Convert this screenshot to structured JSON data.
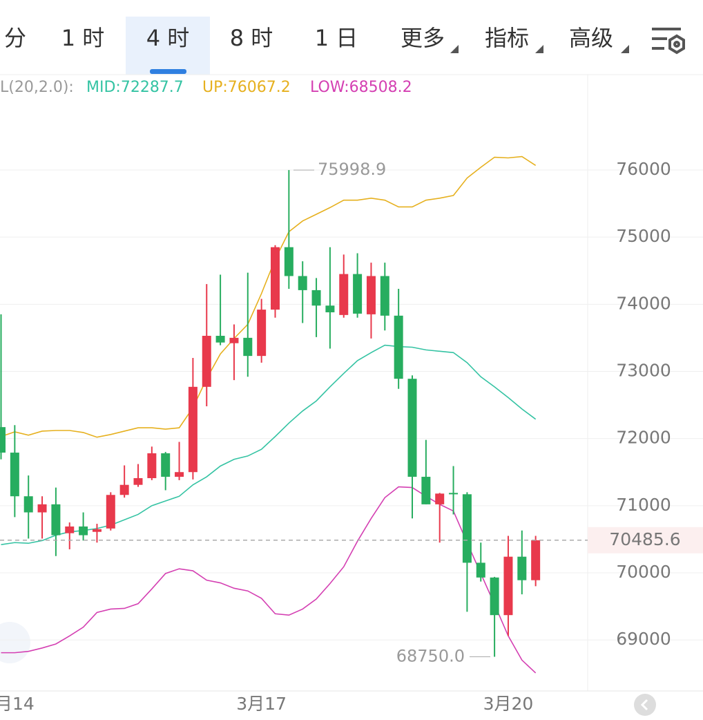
{
  "tabs": [
    "分",
    "1 时",
    "4 时",
    "8 时",
    "1 日",
    "更多",
    "指标",
    "高级"
  ],
  "chart_data": {
    "type": "candlestick",
    "indicator": "L(20,2.0):",
    "x": [
      null,
      "月14",
      null,
      null,
      null,
      null,
      null,
      null,
      null,
      null,
      null,
      null,
      null,
      null,
      null,
      null,
      null,
      null,
      null,
      "3月17",
      null,
      null,
      null,
      null,
      null,
      null,
      null,
      null,
      null,
      null,
      null,
      null,
      null,
      null,
      null,
      null,
      null,
      "3月20",
      null,
      null
    ],
    "open": [
      72170,
      71790,
      71140,
      70900,
      71020,
      70590,
      70690,
      70610,
      70660,
      71160,
      71310,
      71410,
      71780,
      71430,
      71500,
      72770,
      73530,
      73420,
      73500,
      73230,
      73920,
      74850,
      74420,
      74210,
      73980,
      73840,
      74450,
      73850,
      74420,
      73830,
      72890,
      71430,
      71020,
      71190,
      71170,
      70150,
      69930,
      69370,
      70240,
      69890
    ],
    "high": [
      73850,
      72200,
      71450,
      71140,
      71270,
      70750,
      70900,
      70730,
      71200,
      71600,
      71620,
      71880,
      71800,
      71950,
      73200,
      74300,
      74440,
      73700,
      74470,
      74080,
      74880,
      75998.9,
      74640,
      74390,
      74850,
      74740,
      74760,
      74620,
      74620,
      74230,
      72940,
      71980,
      71190,
      71590,
      71200,
      70450,
      69940,
      70550,
      70630,
      70550
    ],
    "low": [
      71690,
      70830,
      70510,
      70510,
      70250,
      70350,
      70480,
      70450,
      70630,
      71120,
      71280,
      71380,
      71230,
      71380,
      71390,
      72480,
      73390,
      72870,
      72920,
      73130,
      73800,
      74230,
      73720,
      73510,
      73340,
      73800,
      73800,
      73490,
      73610,
      72740,
      70810,
      71020,
      70450,
      70870,
      69420,
      69870,
      68750,
      69060,
      69680,
      69800
    ],
    "close": [
      71790,
      71140,
      70900,
      71020,
      70560,
      70690,
      70560,
      70650,
      71160,
      71310,
      71410,
      71780,
      71430,
      71500,
      72770,
      73530,
      73430,
      73500,
      73230,
      73920,
      74850,
      74420,
      74210,
      73980,
      73880,
      74450,
      73860,
      74420,
      73830,
      72890,
      71430,
      71020,
      71180,
      71170,
      70150,
      69930,
      69370,
      70240,
      69890,
      70485.6
    ],
    "up_color": "#e8394c",
    "down_color": "#27ad5f",
    "series": [
      {
        "name": "MID",
        "legend": "MID:72287.7",
        "color": "#34c3a3",
        "values": [
          70420,
          70450,
          70440,
          70480,
          70560,
          70610,
          70630,
          70660,
          70710,
          70790,
          70870,
          71000,
          71070,
          71140,
          71310,
          71430,
          71590,
          71690,
          71740,
          71840,
          72030,
          72230,
          72410,
          72560,
          72770,
          72970,
          73160,
          73280,
          73390,
          73370,
          73360,
          73320,
          73300,
          73280,
          73130,
          72920,
          72770,
          72610,
          72440,
          72287.7
        ]
      },
      {
        "name": "UP",
        "legend": "UP:76067.2",
        "color": "#e6b01e",
        "values": [
          72030,
          72100,
          72050,
          72110,
          72120,
          72120,
          72090,
          72020,
          72060,
          72110,
          72160,
          72160,
          72140,
          72160,
          72460,
          72890,
          73260,
          73490,
          73700,
          74160,
          74670,
          75080,
          75240,
          75340,
          75440,
          75550,
          75550,
          75580,
          75550,
          75450,
          75450,
          75550,
          75580,
          75620,
          75880,
          76040,
          76190,
          76180,
          76200,
          76067.2
        ]
      },
      {
        "name": "LOW",
        "legend": "LOW:68508.2",
        "color": "#d43fb2",
        "values": [
          68810,
          68810,
          68830,
          68880,
          68940,
          69060,
          69190,
          69410,
          69460,
          69470,
          69540,
          69760,
          69990,
          70060,
          70030,
          69890,
          69850,
          69770,
          69730,
          69620,
          69390,
          69370,
          69460,
          69610,
          69840,
          70090,
          70470,
          70810,
          71120,
          71280,
          71270,
          71140,
          71020,
          70920,
          70450,
          69990,
          69530,
          69060,
          68700,
          68508.2
        ]
      }
    ],
    "annotations": [
      {
        "value": 75998.9,
        "label": "75998.9"
      },
      {
        "value": 68750,
        "label": "68750.0"
      }
    ],
    "last_price": 70485.6,
    "ylim": [
      68240,
      77420
    ],
    "yticks": [
      69000,
      70000,
      71000,
      72000,
      73000,
      74000,
      75000,
      76000
    ],
    "grid": true
  }
}
